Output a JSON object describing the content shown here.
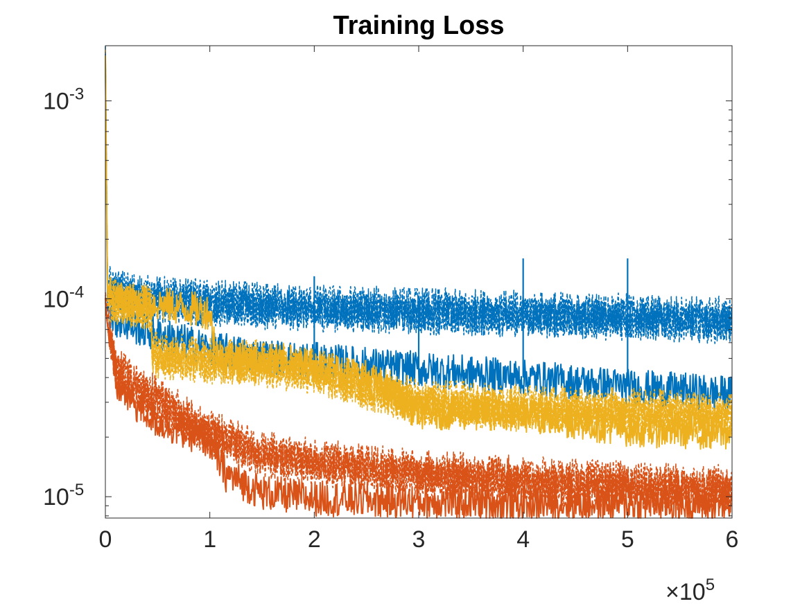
{
  "chart_data": {
    "type": "line",
    "title": "Training Loss",
    "xlabel": "",
    "ylabel": "",
    "x_multiplier_label": "×10",
    "x_multiplier_exp": "5",
    "xlim": [
      0,
      600000
    ],
    "ylim": [
      7.8e-06,
      0.0019
    ],
    "yscale": "log",
    "x_ticks": [
      {
        "value": 0,
        "label": "0"
      },
      {
        "value": 100000,
        "label": "1"
      },
      {
        "value": 200000,
        "label": "2"
      },
      {
        "value": 300000,
        "label": "3"
      },
      {
        "value": 400000,
        "label": "4"
      },
      {
        "value": 500000,
        "label": "5"
      },
      {
        "value": 600000,
        "label": "6"
      }
    ],
    "y_ticks": [
      {
        "value": 1e-05,
        "base": "10",
        "exp": "-5"
      },
      {
        "value": 0.0001,
        "base": "10",
        "exp": "-4"
      },
      {
        "value": 0.001,
        "base": "10",
        "exp": "-3"
      }
    ],
    "series": [
      {
        "name": "blue-dashed",
        "color": "#0072BD",
        "style": "dashed",
        "x": [
          0,
          2000,
          10000,
          50000,
          100000,
          200000,
          300000,
          400000,
          500000,
          600000
        ],
        "y": [
          0.0017,
          0.000115,
          0.000108,
          0.0001,
          9.5e-05,
          9e-05,
          8.7e-05,
          8.4e-05,
          8.1e-05,
          7.8e-05
        ]
      },
      {
        "name": "blue-solid",
        "color": "#0072BD",
        "style": "solid",
        "x": [
          0,
          2000,
          10000,
          50000,
          100000,
          150000,
          200000,
          300000,
          400000,
          500000,
          600000
        ],
        "y": [
          0.0017,
          9e-05,
          7.8e-05,
          6.6e-05,
          5.6e-05,
          5.1e-05,
          4.9e-05,
          4.4e-05,
          4e-05,
          3.6e-05,
          3.3e-05
        ]
      },
      {
        "name": "yellow-dashed",
        "color": "#EDB120",
        "style": "dashed",
        "x": [
          0,
          2000,
          10000,
          44000,
          45000,
          100000,
          150000,
          200000,
          250000,
          300000,
          400000,
          500000,
          600000
        ],
        "y": [
          0.0017,
          0.0001,
          9.7e-05,
          8.8e-05,
          5.2e-05,
          4.9e-05,
          4.7e-05,
          4.3e-05,
          3.6e-05,
          3e-05,
          2.8e-05,
          2.7e-05,
          2.6e-05
        ]
      },
      {
        "name": "yellow-solid",
        "color": "#EDB120",
        "style": "solid",
        "x": [
          0,
          2000,
          10000,
          50000,
          100000,
          107000,
          150000,
          200000,
          250000,
          290000,
          300000,
          400000,
          500000,
          600000
        ],
        "y": [
          0.0017,
          0.000105,
          0.0001,
          9.4e-05,
          8.6e-05,
          5.2e-05,
          4.9e-05,
          4.6e-05,
          4e-05,
          2.9e-05,
          2.7e-05,
          2.6e-05,
          2.2e-05,
          2.1e-05
        ]
      },
      {
        "name": "orange-dashed",
        "color": "#D95319",
        "style": "dashed",
        "x": [
          0,
          2000,
          10000,
          30000,
          50000,
          100000,
          150000,
          200000,
          300000,
          400000,
          500000,
          600000
        ],
        "y": [
          0.0001,
          7.5e-05,
          4.5e-05,
          3.6e-05,
          3.1e-05,
          2.1e-05,
          1.65e-05,
          1.5e-05,
          1.32e-05,
          1.22e-05,
          1.15e-05,
          1.1e-05
        ]
      },
      {
        "name": "orange-solid",
        "color": "#D95319",
        "style": "solid",
        "x": [
          0,
          2000,
          10000,
          30000,
          50000,
          80000,
          100000,
          115000,
          150000,
          200000,
          300000,
          400000,
          500000,
          600000
        ],
        "y": [
          0.0001,
          7.5e-05,
          3.7e-05,
          2.9e-05,
          2.4e-05,
          2.1e-05,
          1.9e-05,
          1.3e-05,
          1.05e-05,
          9.8e-06,
          9.5e-06,
          9.3e-06,
          9.3e-06,
          9.2e-06
        ]
      }
    ],
    "spikes": [
      {
        "series": "blue-solid",
        "x": 200000,
        "y": 0.00013
      },
      {
        "series": "blue-solid",
        "x": 300000,
        "y": 8.9e-05
      },
      {
        "series": "blue-solid",
        "x": 400000,
        "y": 0.00016
      },
      {
        "series": "blue-solid",
        "x": 500000,
        "y": 0.00016
      }
    ]
  }
}
